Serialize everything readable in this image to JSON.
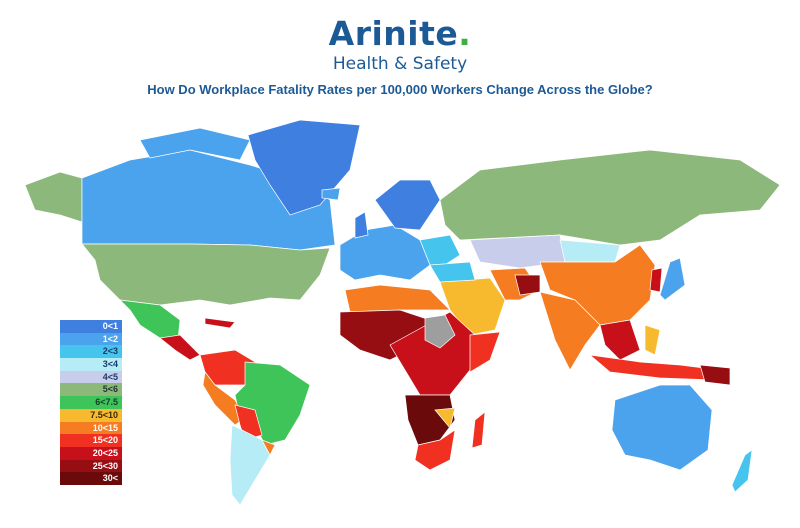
{
  "logo": {
    "name": "Arinite",
    "dot": ".",
    "tagline": "Health & Safety"
  },
  "title": "How Do Workplace Fatality Rates per 100,000 Workers Change Across the Globe?",
  "legend": [
    {
      "label": "0<1",
      "color": "#3f7fe0",
      "text": "#ffffff"
    },
    {
      "label": "1<2",
      "color": "#4aa3ec",
      "text": "#ffffff"
    },
    {
      "label": "2<3",
      "color": "#45c4ee",
      "text": "#1a3a6a"
    },
    {
      "label": "3<4",
      "color": "#b5ecf6",
      "text": "#1a3a6a"
    },
    {
      "label": "4<5",
      "color": "#c8cdec",
      "text": "#1a3a6a"
    },
    {
      "label": "5<6",
      "color": "#8db87c",
      "text": "#1a3a2a"
    },
    {
      "label": "6<7.5",
      "color": "#3fc45a",
      "text": "#1a3a2a"
    },
    {
      "label": "7.5<10",
      "color": "#f7b92e",
      "text": "#3a2a0a"
    },
    {
      "label": "10<15",
      "color": "#f57c20",
      "text": "#ffffff"
    },
    {
      "label": "15<20",
      "color": "#f03020",
      "text": "#ffffff"
    },
    {
      "label": "20<25",
      "color": "#c8101a",
      "text": "#ffffff"
    },
    {
      "label": "25<30",
      "color": "#960d12",
      "text": "#ffffff"
    },
    {
      "label": "30<",
      "color": "#6a0a0a",
      "text": "#ffffff"
    }
  ],
  "no_data_color": "#9e9e9e"
}
